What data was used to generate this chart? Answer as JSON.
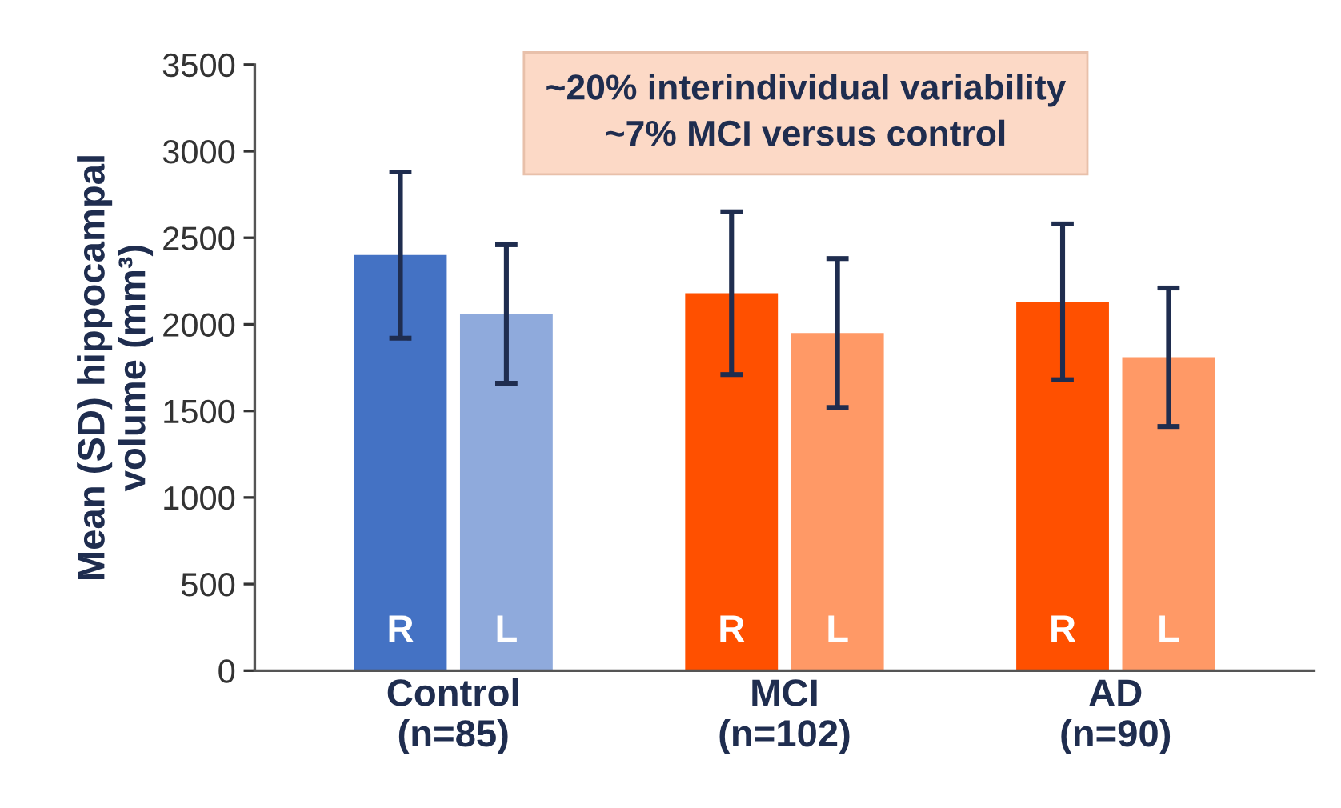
{
  "chart_data": {
    "type": "bar",
    "categories": [
      "Control\n(n=85)",
      "MCI\n(n=102)",
      "AD\n(n=90)"
    ],
    "series": [
      {
        "name": "R",
        "colors": [
          "#4472c4",
          "#ff5000",
          "#ff5000"
        ],
        "values": [
          2400,
          2180,
          2130
        ],
        "errors": [
          480,
          470,
          450
        ]
      },
      {
        "name": "L",
        "colors": [
          "#8faadc",
          "#ff9966",
          "#ff9966"
        ],
        "values": [
          2060,
          1950,
          1810
        ],
        "errors": [
          400,
          430,
          400
        ]
      }
    ],
    "ylabel": "Mean (SD) hippocampal\nvolume (mm³)",
    "annotations": [
      "~20% interindividual variability\n~7% MCI versus control"
    ],
    "ylim": [
      0,
      3500
    ],
    "yticks": [
      0,
      500,
      1000,
      1500,
      2000,
      2500,
      3000,
      3500
    ],
    "grid": false,
    "legend": false
  }
}
